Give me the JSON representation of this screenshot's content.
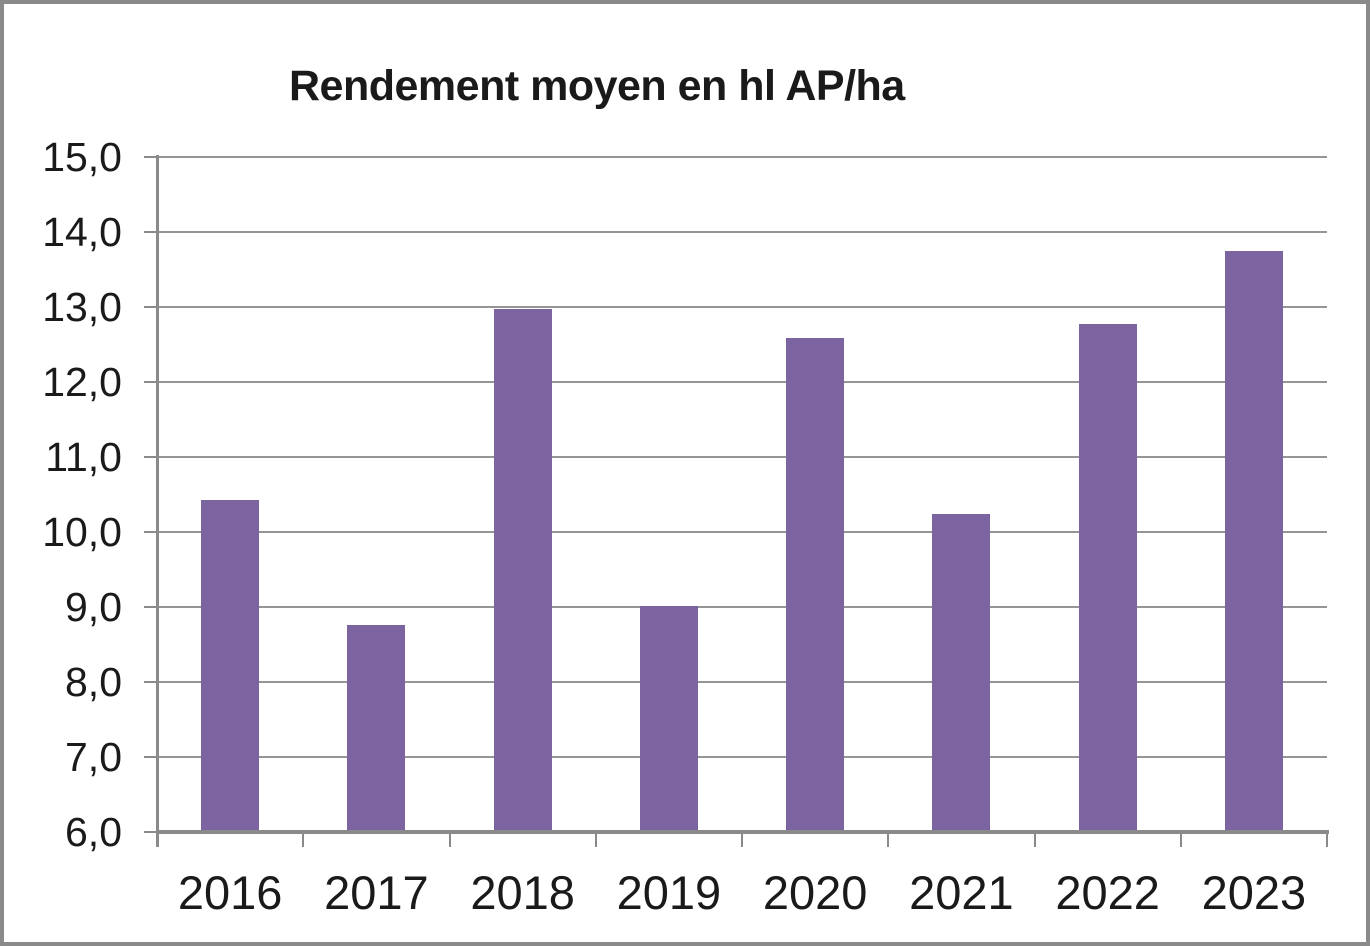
{
  "chart_data": {
    "type": "bar",
    "title": "Rendement moyen en hl AP/ha",
    "categories": [
      "2016",
      "2017",
      "2018",
      "2019",
      "2020",
      "2021",
      "2022",
      "2023"
    ],
    "values": [
      10.43,
      8.76,
      12.97,
      9.01,
      12.59,
      10.24,
      12.78,
      13.75
    ],
    "series_name": "Rendement moyen en hl AP/ha",
    "xlabel": "",
    "ylabel": "",
    "ylim": [
      6.0,
      15.0
    ],
    "ytick_step": 1.0,
    "ytick_labels": [
      "6,0",
      "7,0",
      "8,0",
      "9,0",
      "10,0",
      "11,0",
      "12,0",
      "13,0",
      "14,0",
      "15,0"
    ],
    "grid": true,
    "legend_position": "none",
    "colors": {
      "bar": "#7b64a0",
      "gridline": "#959595",
      "axis": "#8a8a8a",
      "text": "#1a1a1a",
      "background": "#ffffff",
      "frame_border": "#8a8a8a"
    }
  }
}
